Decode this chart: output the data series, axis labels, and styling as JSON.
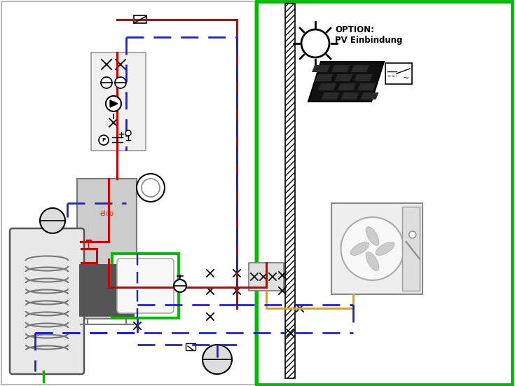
{
  "fig_width": 7.35,
  "fig_height": 5.51,
  "dpi": 100,
  "bg_color": "#ffffff",
  "red": "#cc0000",
  "blue": "#2222cc",
  "green": "#00bb00",
  "yellow": "#e6a800",
  "black": "#000000",
  "gray_light": "#cccccc",
  "gray_dark": "#555555",
  "option_text": "OPTION:\nPV Einbindung",
  "elco_text": "elco"
}
